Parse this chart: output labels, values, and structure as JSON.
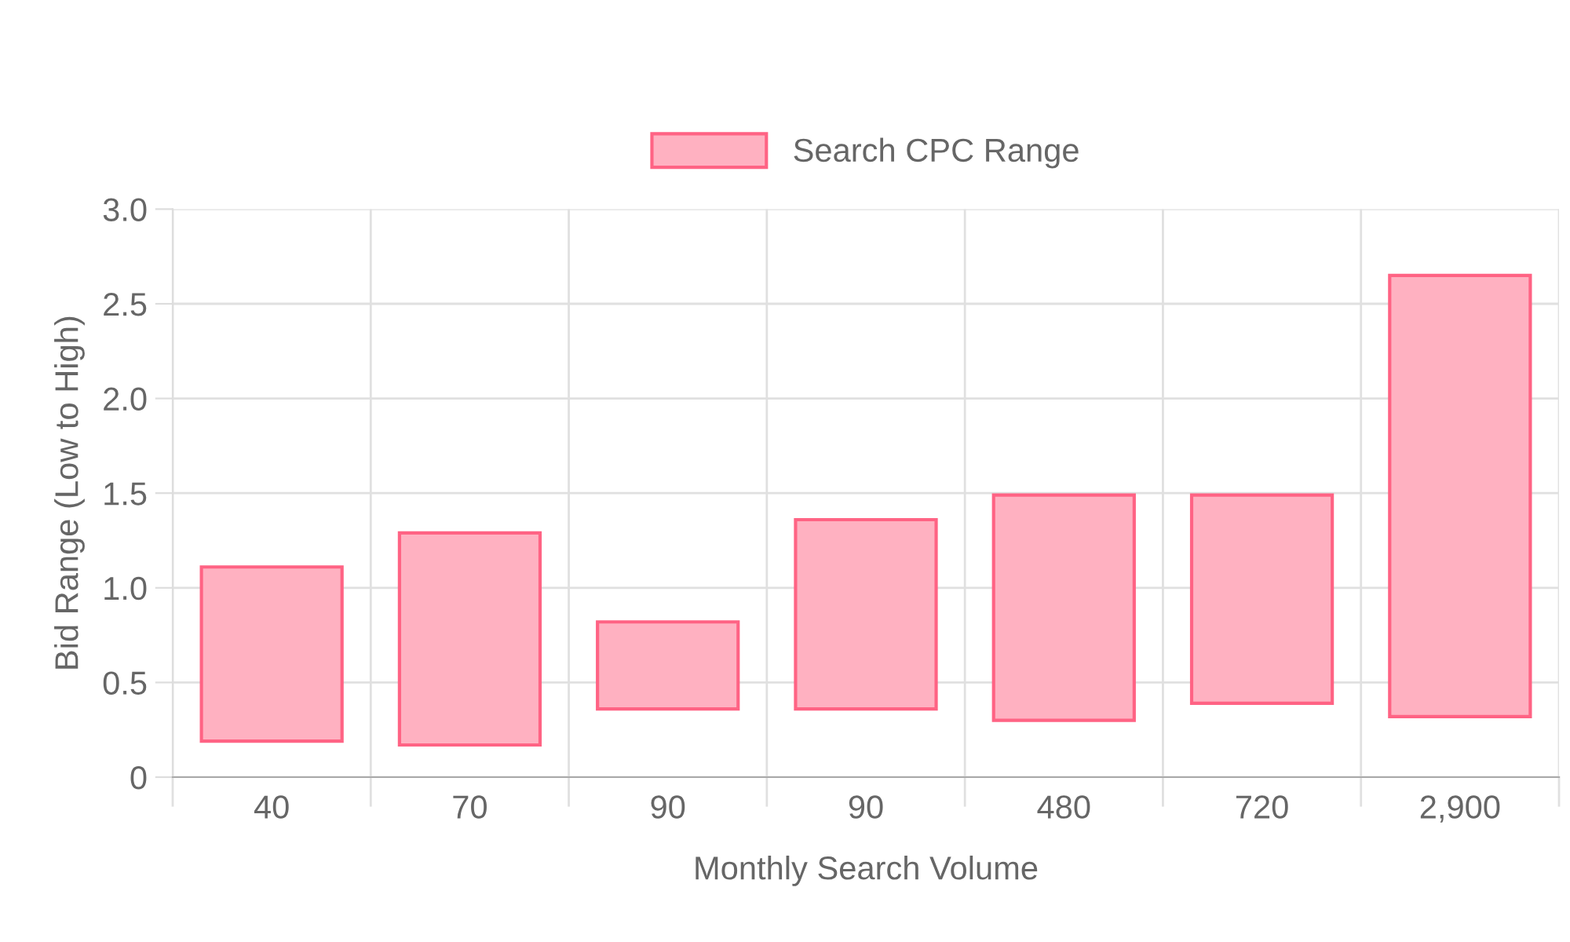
{
  "chart_data": {
    "type": "bar",
    "xlabel": "Monthly Search Volume",
    "ylabel": "Bid Range (Low to High)",
    "categories": [
      "40",
      "70",
      "90",
      "90",
      "480",
      "720",
      "2,900"
    ],
    "series": [
      {
        "name": "Search CPC Range",
        "color": "#ffb1c1",
        "values": [
          0.92,
          1.12,
          0.46,
          1.0,
          1.19,
          1.1,
          2.33
        ],
        "base": [
          0.19,
          0.17,
          0.36,
          0.36,
          0.3,
          0.39,
          0.32
        ]
      }
    ],
    "ylim": [
      0,
      3
    ],
    "yticks": [
      0,
      {
        "value": 0.5,
        "label": "0.5"
      },
      {
        "value": 1,
        "label": "1.0"
      },
      {
        "value": 1.5,
        "label": "1.5"
      },
      {
        "value": 2,
        "label": "2.0"
      },
      {
        "value": 2.5,
        "label": "2.5"
      },
      {
        "value": 3,
        "label": "3.0"
      }
    ],
    "grid": true,
    "legend": "top"
  }
}
